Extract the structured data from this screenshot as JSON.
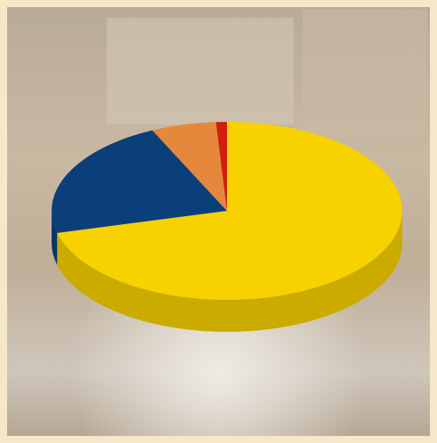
{
  "chart_data": {
    "type": "pie3d",
    "series": [
      {
        "color": "#f7d100",
        "values": [
          71
        ]
      },
      {
        "color": "#0b3f7a",
        "values": [
          22
        ]
      },
      {
        "color": "#e5883c",
        "values": [
          6
        ]
      },
      {
        "color": "#d01e0a",
        "values": [
          1
        ]
      }
    ]
  }
}
